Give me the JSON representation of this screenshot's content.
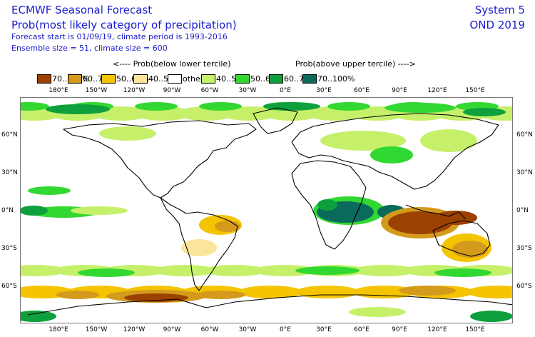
{
  "header": {
    "title": "ECMWF Seasonal Forecast",
    "subtitle": "Prob(most likely category of precipitation)",
    "forecast_info": "Forecast start is 01/09/19, climate period is 1993-2016",
    "ensemble_info": "Ensemble size = 51, climate size = 600",
    "system": "System 5",
    "period": "OND 2019"
  },
  "legend": {
    "below_label": "<---- Prob(below lower tercile)",
    "above_label": "Prob(above upper tercile) ---->",
    "items": [
      {
        "label": "70..100%",
        "color": "#9c4200"
      },
      {
        "label": "60..70%",
        "color": "#d49a1c"
      },
      {
        "label": "50..60%",
        "color": "#f5c400"
      },
      {
        "label": "40..50%",
        "color": "#fbe59a"
      },
      {
        "label": "other",
        "color": "#ffffff"
      },
      {
        "label": "40..50%",
        "color": "#c6f06a"
      },
      {
        "label": "50..60%",
        "color": "#32d832"
      },
      {
        "label": "60..70%",
        "color": "#0ea03c"
      },
      {
        "label": "70..100%",
        "color": "#0a6a5c"
      }
    ]
  },
  "map": {
    "lon_labels": [
      "180°E",
      "150°W",
      "120°W",
      "90°W",
      "60°W",
      "30°W",
      "0°E",
      "30°E",
      "60°E",
      "90°E",
      "120°E",
      "150°E"
    ],
    "lat_labels": [
      "60°N",
      "30°N",
      "0°N",
      "30°S",
      "60°S"
    ]
  }
}
